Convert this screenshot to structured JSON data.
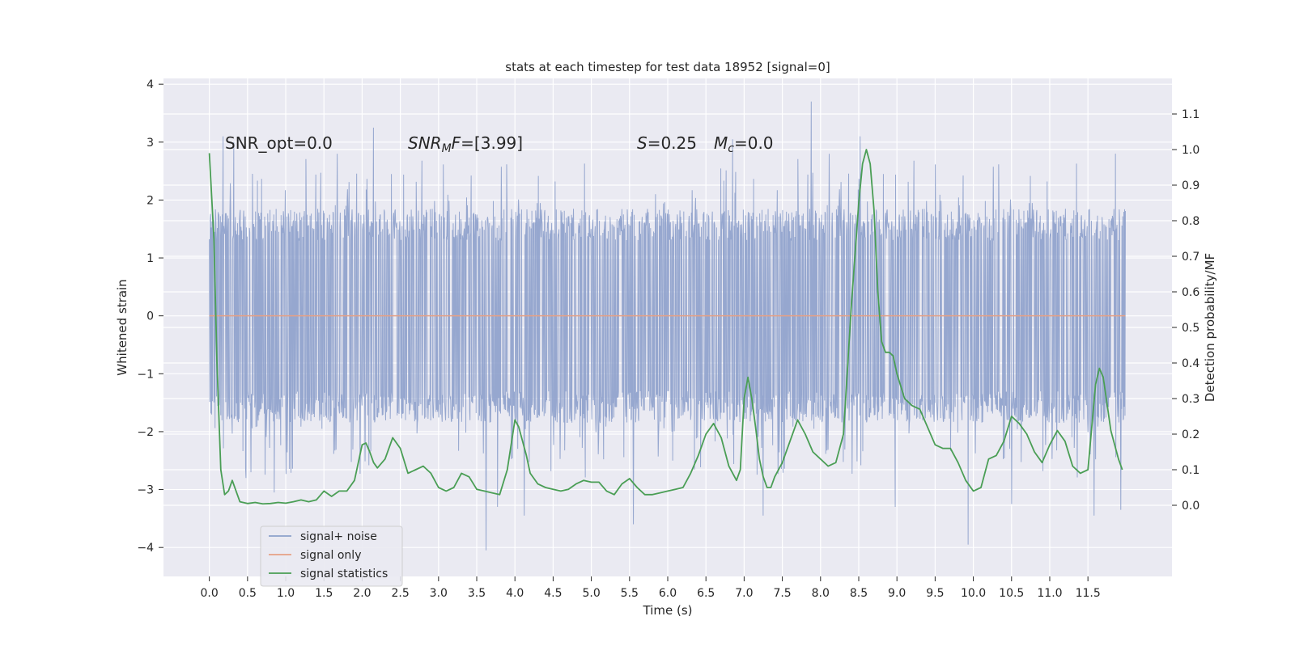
{
  "chart_data": {
    "type": "line",
    "title": "stats at each timestep for test data 18952 [signal=0]",
    "xlabel": "Time (s)",
    "ylabel_left": "Whitened strain",
    "ylabel_right": "Detection probability/MF",
    "xlim": [
      -0.6,
      12.6
    ],
    "ylim_left": [
      -4.5,
      4.1
    ],
    "ylim_right": [
      -0.2,
      1.2
    ],
    "x_ticks": [
      0.0,
      0.5,
      1.0,
      1.5,
      2.0,
      2.5,
      3.0,
      3.5,
      4.0,
      4.5,
      5.0,
      5.5,
      6.0,
      6.5,
      7.0,
      7.5,
      8.0,
      8.5,
      9.0,
      9.5,
      10.0,
      10.5,
      11.0,
      11.5
    ],
    "x_tick_labels": [
      "0.0",
      "0.5",
      "1.0",
      "1.5",
      "2.0",
      "2.5",
      "3.0",
      "3.5",
      "4.0",
      "4.5",
      "5.0",
      "5.5",
      "6.0",
      "6.5",
      "7.0",
      "7.5",
      "8.0",
      "8.5",
      "9.0",
      "9.5",
      "10.0",
      "10.5",
      "11.0",
      "11.5"
    ],
    "y_left_ticks": [
      -4,
      -3,
      -2,
      -1,
      0,
      1,
      2,
      3,
      4
    ],
    "y_left_tick_labels": [
      "−4",
      "−3",
      "−2",
      "−1",
      "0",
      "1",
      "2",
      "3",
      "4"
    ],
    "y_right_ticks": [
      0.0,
      0.1,
      0.2,
      0.3,
      0.4,
      0.5,
      0.6,
      0.7,
      0.8,
      0.9,
      1.0,
      1.1
    ],
    "y_right_tick_labels": [
      "0.0",
      "0.1",
      "0.2",
      "0.3",
      "0.4",
      "0.5",
      "0.6",
      "0.7",
      "0.8",
      "0.9",
      "1.0",
      "1.1"
    ],
    "grid": true,
    "legend_position": "lower-left",
    "annotations": {
      "snr_opt": "SNR_opt=0.0",
      "snr_mf_main": "SNR",
      "snr_mf_sub": "M",
      "snr_mf_rest": "F=[3.99]",
      "s_main": "S",
      "s_rest": "=0.25",
      "mc_main": "M",
      "mc_sub": "c",
      "mc_rest": "=0.0"
    },
    "series": [
      {
        "name": "signal+ noise",
        "color": "#8da0cb",
        "axis": "left",
        "description": "whitened noise, sampled 0 to 11.99 s",
        "x_range": [
          0.0,
          11.99
        ],
        "typical_range": [
          -1.9,
          1.9
        ],
        "outliers": [
          {
            "x": 0.18,
            "y": 3.1
          },
          {
            "x": 0.32,
            "y": 3.0
          },
          {
            "x": 0.48,
            "y": -2.8
          },
          {
            "x": 0.85,
            "y": -3.05
          },
          {
            "x": 2.15,
            "y": 3.25
          },
          {
            "x": 3.62,
            "y": -4.05
          },
          {
            "x": 3.77,
            "y": -3.3
          },
          {
            "x": 4.12,
            "y": -3.45
          },
          {
            "x": 5.55,
            "y": -3.6
          },
          {
            "x": 6.85,
            "y": 3.05
          },
          {
            "x": 7.25,
            "y": -3.45
          },
          {
            "x": 7.88,
            "y": 3.7
          },
          {
            "x": 8.52,
            "y": 3.1
          },
          {
            "x": 8.98,
            "y": -3.3
          },
          {
            "x": 9.93,
            "y": -3.95
          },
          {
            "x": 10.5,
            "y": -3.25
          },
          {
            "x": 11.58,
            "y": -3.45
          },
          {
            "x": 11.93,
            "y": -3.35
          },
          {
            "x": 11.86,
            "y": 2.8
          }
        ]
      },
      {
        "name": "signal only",
        "color": "#e5a085",
        "axis": "left",
        "x": [
          0.0,
          11.99
        ],
        "values": [
          0.0,
          0.0
        ]
      },
      {
        "name": "signal statistics",
        "color": "#4a9e55",
        "axis": "right",
        "x": [
          0.0,
          0.06,
          0.1,
          0.15,
          0.2,
          0.25,
          0.3,
          0.35,
          0.4,
          0.5,
          0.6,
          0.7,
          0.8,
          0.9,
          1.0,
          1.1,
          1.2,
          1.3,
          1.4,
          1.5,
          1.6,
          1.7,
          1.8,
          1.9,
          2.0,
          2.05,
          2.1,
          2.15,
          2.2,
          2.3,
          2.4,
          2.5,
          2.6,
          2.7,
          2.8,
          2.9,
          3.0,
          3.1,
          3.2,
          3.3,
          3.4,
          3.5,
          3.6,
          3.7,
          3.8,
          3.9,
          4.0,
          4.05,
          4.1,
          4.15,
          4.2,
          4.3,
          4.4,
          4.5,
          4.6,
          4.7,
          4.8,
          4.9,
          5.0,
          5.1,
          5.2,
          5.3,
          5.4,
          5.5,
          5.6,
          5.7,
          5.8,
          5.9,
          6.0,
          6.1,
          6.2,
          6.3,
          6.4,
          6.5,
          6.6,
          6.7,
          6.8,
          6.9,
          6.95,
          7.0,
          7.05,
          7.1,
          7.15,
          7.2,
          7.25,
          7.3,
          7.35,
          7.4,
          7.5,
          7.6,
          7.7,
          7.8,
          7.9,
          8.0,
          8.1,
          8.2,
          8.3,
          8.4,
          8.5,
          8.55,
          8.6,
          8.65,
          8.7,
          8.75,
          8.8,
          8.85,
          8.9,
          8.95,
          9.0,
          9.1,
          9.2,
          9.3,
          9.4,
          9.5,
          9.6,
          9.7,
          9.8,
          9.9,
          10.0,
          10.1,
          10.2,
          10.3,
          10.4,
          10.5,
          10.6,
          10.7,
          10.8,
          10.9,
          11.0,
          11.1,
          11.2,
          11.3,
          11.4,
          11.5,
          11.6,
          11.65,
          11.7,
          11.8,
          11.9,
          11.95
        ],
        "values": [
          0.99,
          0.75,
          0.4,
          0.1,
          0.03,
          0.04,
          0.07,
          0.04,
          0.01,
          0.005,
          0.008,
          0.004,
          0.005,
          0.008,
          0.006,
          0.01,
          0.015,
          0.01,
          0.015,
          0.04,
          0.025,
          0.04,
          0.04,
          0.07,
          0.17,
          0.175,
          0.15,
          0.12,
          0.105,
          0.13,
          0.19,
          0.16,
          0.09,
          0.1,
          0.11,
          0.09,
          0.05,
          0.04,
          0.05,
          0.09,
          0.08,
          0.045,
          0.04,
          0.035,
          0.03,
          0.1,
          0.24,
          0.22,
          0.18,
          0.14,
          0.09,
          0.06,
          0.05,
          0.045,
          0.04,
          0.045,
          0.06,
          0.07,
          0.065,
          0.065,
          0.04,
          0.03,
          0.06,
          0.075,
          0.05,
          0.03,
          0.03,
          0.035,
          0.04,
          0.045,
          0.05,
          0.09,
          0.14,
          0.2,
          0.23,
          0.19,
          0.11,
          0.07,
          0.1,
          0.3,
          0.36,
          0.3,
          0.22,
          0.13,
          0.08,
          0.05,
          0.05,
          0.08,
          0.12,
          0.18,
          0.24,
          0.2,
          0.15,
          0.13,
          0.11,
          0.12,
          0.2,
          0.55,
          0.85,
          0.96,
          1.0,
          0.96,
          0.83,
          0.6,
          0.46,
          0.43,
          0.43,
          0.42,
          0.37,
          0.3,
          0.28,
          0.27,
          0.22,
          0.17,
          0.16,
          0.16,
          0.12,
          0.07,
          0.04,
          0.05,
          0.13,
          0.14,
          0.18,
          0.25,
          0.23,
          0.2,
          0.15,
          0.12,
          0.17,
          0.21,
          0.18,
          0.11,
          0.09,
          0.1,
          0.34,
          0.385,
          0.36,
          0.21,
          0.13,
          0.1
        ]
      }
    ]
  }
}
